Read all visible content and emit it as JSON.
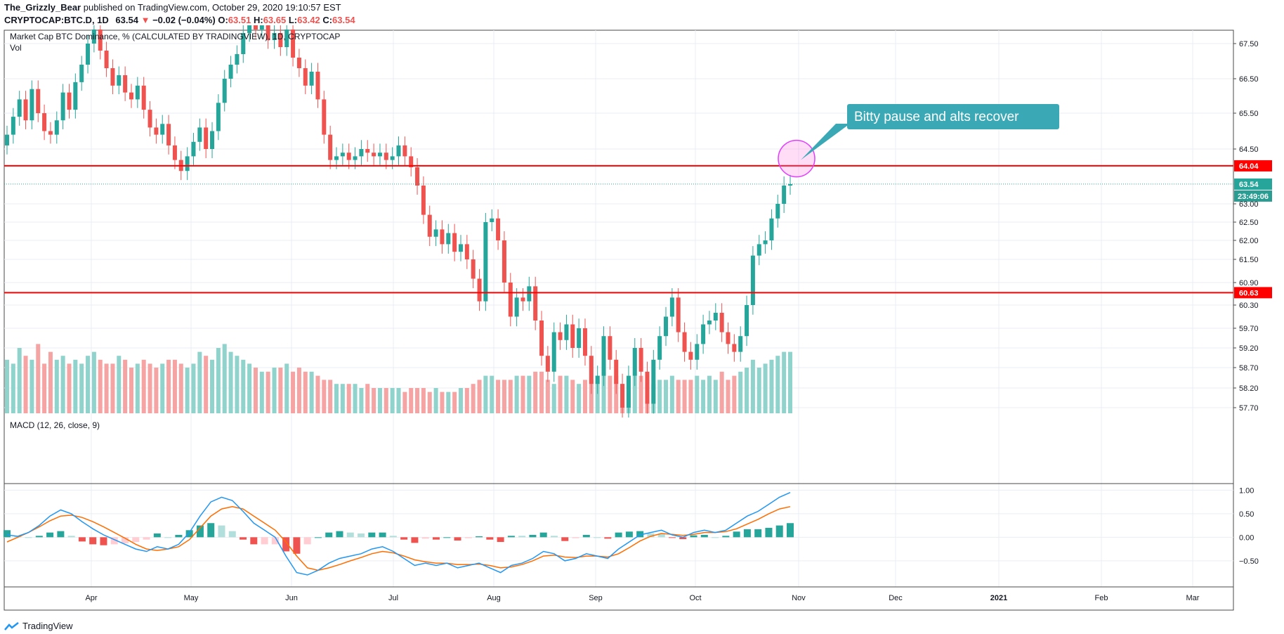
{
  "header": {
    "author": "The_Grizzly_Bear",
    "published": "published on TradingView.com, October 29, 2020 19:10:57 EST",
    "symbol": "CRYPTOCAP:BTC.D, 1D",
    "last": "63.54",
    "change_arrow": "▼",
    "change": "−0.02 (−0.04%)",
    "o_label": "O:",
    "o": "63.51",
    "h_label": "H:",
    "h": "63.65",
    "l_label": "L:",
    "l": "63.42",
    "c_label": "C:",
    "c": "63.54"
  },
  "colors": {
    "up": "#26a69a",
    "down": "#ef5350",
    "grid": "#e9eef3",
    "macd_line": "#2196f3",
    "signal_line": "#ff6d00",
    "hline": "#ff0000",
    "callout_bg": "#3aa9b5"
  },
  "chart_data": [
    {
      "type": "candlestick",
      "title": "Market Cap BTC Dominance, % (CALCULATED BY TRADINGVIEW), 1D, CRYPTOCAP",
      "volume_label": "Vol",
      "y_ticks": [
        "67.50",
        "66.50",
        "65.50",
        "64.50",
        "63.00",
        "62.50",
        "62.00",
        "61.50",
        "60.90",
        "60.30",
        "59.70",
        "59.20",
        "58.70",
        "58.20",
        "57.70"
      ],
      "x_ticks": [
        "Apr",
        "May",
        "Jun",
        "Jul",
        "Aug",
        "Sep",
        "Oct",
        "Nov",
        "Dec",
        "2021",
        "Feb",
        "Mar"
      ],
      "x_ticks_bold": [
        "2021"
      ],
      "horizontal_lines": [
        {
          "value": 64.04,
          "label": "64.04"
        },
        {
          "value": 60.63,
          "label": "60.63"
        }
      ],
      "last_price": {
        "value": 63.54,
        "label": "63.54",
        "countdown": "23:49:06"
      },
      "annotation": {
        "text": "Bitty pause and alts recover",
        "target_value": 64.2
      },
      "close_series": [
        64.9,
        65.4,
        65.9,
        65.3,
        66.2,
        65.5,
        65.0,
        64.9,
        65.3,
        66.1,
        65.6,
        66.4,
        66.9,
        67.5,
        67.9,
        67.3,
        66.8,
        66.3,
        66.6,
        66.1,
        65.9,
        66.3,
        65.6,
        65.1,
        64.9,
        65.2,
        64.6,
        64.2,
        63.9,
        64.3,
        64.7,
        65.1,
        64.5,
        65.0,
        65.8,
        66.5,
        66.9,
        67.2,
        67.8,
        68.1,
        67.9,
        68.3,
        67.6,
        67.8,
        67.4,
        67.9,
        67.1,
        66.8,
        66.3,
        66.7,
        65.9,
        64.9,
        64.2,
        64.3,
        64.4,
        64.2,
        64.3,
        64.5,
        64.4,
        64.3,
        64.4,
        64.2,
        64.3,
        64.6,
        64.3,
        64.0,
        63.5,
        62.7,
        62.1,
        62.3,
        61.9,
        62.2,
        61.7,
        61.9,
        61.5,
        61.0,
        60.4,
        62.5,
        62.6,
        62.0,
        60.9,
        60.0,
        60.5,
        60.4,
        60.8,
        59.9,
        59.0,
        58.6,
        59.6,
        59.4,
        59.8,
        59.2,
        59.7,
        59.0,
        58.3,
        58.5,
        59.5,
        58.9,
        58.3,
        57.7,
        58.5,
        59.2,
        58.6,
        57.8,
        58.9,
        59.5,
        60.0,
        60.5,
        59.6,
        59.1,
        58.9,
        59.3,
        59.8,
        59.9,
        60.1,
        59.6,
        59.3,
        59.1,
        59.5,
        60.3,
        61.6,
        61.9,
        62.0,
        62.6,
        63.0,
        63.5,
        63.54
      ],
      "volume_series": [
        58.9,
        58.8,
        59.2,
        59.0,
        58.9,
        59.3,
        58.8,
        59.1,
        58.9,
        59.0,
        58.8,
        58.9,
        58.8,
        59.0,
        59.1,
        58.9,
        58.8,
        58.8,
        59.0,
        58.9,
        58.7,
        58.8,
        58.9,
        58.8,
        58.7,
        58.8,
        58.9,
        58.9,
        58.8,
        58.7,
        58.8,
        59.1,
        59.0,
        58.9,
        59.2,
        59.3,
        59.1,
        59.0,
        58.9,
        58.8,
        58.7,
        58.6,
        58.6,
        58.7,
        58.7,
        58.8,
        58.6,
        58.7,
        58.6,
        58.6,
        58.5,
        58.4,
        58.4,
        58.3,
        58.3,
        58.3,
        58.3,
        58.2,
        58.3,
        58.2,
        58.2,
        58.2,
        58.2,
        58.2,
        58.1,
        58.2,
        58.2,
        58.2,
        58.1,
        58.2,
        58.1,
        58.1,
        58.1,
        58.2,
        58.2,
        58.3,
        58.4,
        58.5,
        58.5,
        58.4,
        58.4,
        58.4,
        58.5,
        58.5,
        58.5,
        58.6,
        58.6,
        58.4,
        58.3,
        58.5,
        58.5,
        58.4,
        58.3,
        58.4,
        58.4,
        58.5,
        58.6,
        58.5,
        58.5,
        58.3,
        58.4,
        58.5,
        58.5,
        58.4,
        58.3,
        58.4,
        58.4,
        58.5,
        58.4,
        58.4,
        58.4,
        58.5,
        58.4,
        58.5,
        58.4,
        58.6,
        58.4,
        58.5,
        58.6,
        58.7,
        58.9,
        58.7,
        58.8,
        58.9,
        59.0,
        59.1,
        59.1
      ]
    },
    {
      "type": "line",
      "title": "MACD (12, 26, close, 9)",
      "y_ticks": [
        "1.00",
        "0.50",
        "0.00",
        "−0.50"
      ],
      "ylim": [
        -0.95,
        1.05
      ],
      "series": [
        {
          "name": "MACD",
          "values": [
            0.05,
            0.02,
            0.1,
            0.25,
            0.45,
            0.58,
            0.5,
            0.33,
            0.18,
            0.05,
            -0.05,
            -0.15,
            -0.25,
            -0.3,
            -0.2,
            -0.25,
            -0.15,
            0.1,
            0.45,
            0.75,
            0.85,
            0.78,
            0.55,
            0.3,
            0.15,
            0.0,
            -0.4,
            -0.75,
            -0.8,
            -0.7,
            -0.55,
            -0.45,
            -0.4,
            -0.35,
            -0.25,
            -0.2,
            -0.3,
            -0.45,
            -0.6,
            -0.55,
            -0.6,
            -0.55,
            -0.65,
            -0.6,
            -0.55,
            -0.65,
            -0.75,
            -0.6,
            -0.55,
            -0.45,
            -0.3,
            -0.35,
            -0.5,
            -0.45,
            -0.35,
            -0.4,
            -0.45,
            -0.25,
            -0.1,
            0.05,
            0.1,
            0.15,
            0.05,
            0.0,
            0.1,
            0.15,
            0.1,
            0.15,
            0.3,
            0.45,
            0.55,
            0.7,
            0.85,
            0.95
          ]
        },
        {
          "name": "Signal",
          "values": [
            -0.1,
            0.0,
            0.1,
            0.22,
            0.35,
            0.45,
            0.47,
            0.42,
            0.33,
            0.22,
            0.1,
            -0.02,
            -0.15,
            -0.25,
            -0.28,
            -0.25,
            -0.2,
            -0.05,
            0.2,
            0.45,
            0.6,
            0.65,
            0.6,
            0.45,
            0.3,
            0.15,
            -0.1,
            -0.4,
            -0.65,
            -0.7,
            -0.65,
            -0.58,
            -0.5,
            -0.43,
            -0.35,
            -0.3,
            -0.33,
            -0.4,
            -0.48,
            -0.52,
            -0.55,
            -0.55,
            -0.58,
            -0.58,
            -0.57,
            -0.6,
            -0.65,
            -0.63,
            -0.58,
            -0.5,
            -0.4,
            -0.38,
            -0.42,
            -0.43,
            -0.4,
            -0.4,
            -0.42,
            -0.35,
            -0.22,
            -0.08,
            0.02,
            0.08,
            0.06,
            0.04,
            0.06,
            0.1,
            0.1,
            0.12,
            0.18,
            0.28,
            0.38,
            0.5,
            0.6,
            0.65
          ]
        }
      ]
    }
  ],
  "footer": {
    "brand": "TradingView"
  }
}
